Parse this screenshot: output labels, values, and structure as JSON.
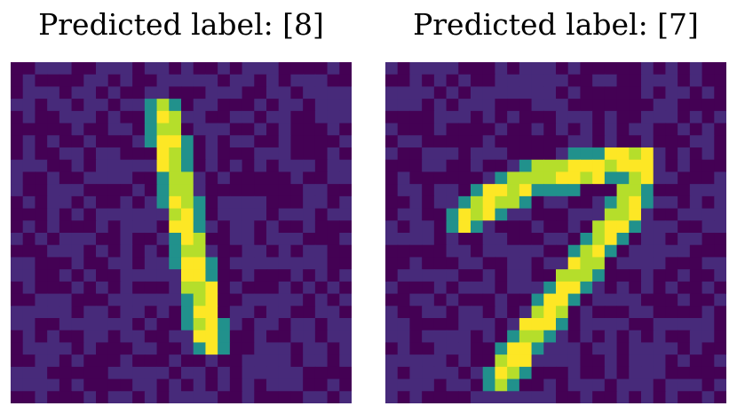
{
  "panels": [
    {
      "title": "Predicted label: [8]",
      "image": "noisy-mnist-digit-one",
      "grid_size": 28
    },
    {
      "title": "Predicted label: [7]",
      "image": "noisy-mnist-digit-seven",
      "grid_size": 28
    }
  ],
  "colormap": {
    "name": "viridis",
    "background_dark": "#440154",
    "background_noise": "#472a7a",
    "stroke_high": "#fde725",
    "stroke_mid": "#b5de2b",
    "stroke_edge": "#21918c"
  }
}
